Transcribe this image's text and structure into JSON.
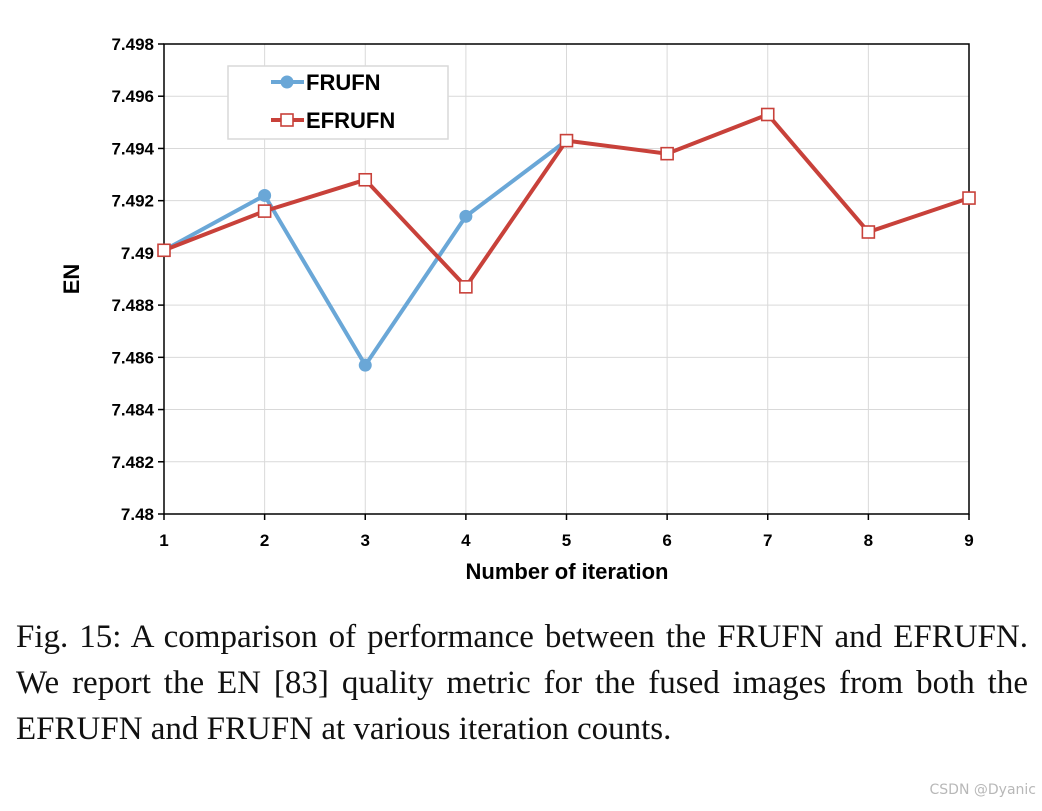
{
  "chart_data": {
    "type": "line",
    "xlabel": "Number of iteration",
    "ylabel": "EN",
    "x": [
      1,
      2,
      3,
      4,
      5,
      6,
      7,
      8,
      9
    ],
    "ylim": [
      7.48,
      7.498
    ],
    "yticks": [
      7.48,
      7.482,
      7.484,
      7.486,
      7.488,
      7.49,
      7.492,
      7.494,
      7.496,
      7.498
    ],
    "ytick_labels": [
      "7.48",
      "7.482",
      "7.484",
      "7.486",
      "7.488",
      "7.49",
      "7.492",
      "7.494",
      "7.496",
      "7.498"
    ],
    "grid": true,
    "legend_position": "top-left",
    "series": [
      {
        "name": "FRUFN",
        "color": "#6aa7d7",
        "marker": "circle-filled",
        "x": [
          1,
          2,
          3,
          4,
          5
        ],
        "values": [
          7.4901,
          7.4922,
          7.4857,
          7.4914,
          7.4943
        ]
      },
      {
        "name": "EFRUFN",
        "color": "#c8413a",
        "marker": "square-open",
        "x": [
          1,
          2,
          3,
          4,
          5,
          6,
          7,
          8,
          9
        ],
        "values": [
          7.4901,
          7.4916,
          7.4928,
          7.4887,
          7.4943,
          7.4938,
          7.4953,
          7.4908,
          7.4921
        ]
      }
    ]
  },
  "caption": "Fig. 15: A comparison of performance between the FRUFN and EFRUFN. We report the EN [83] quality metric for the fused images from both the EFRUFN and FRUFN at various iteration counts.",
  "watermark": "CSDN @Dyanic"
}
